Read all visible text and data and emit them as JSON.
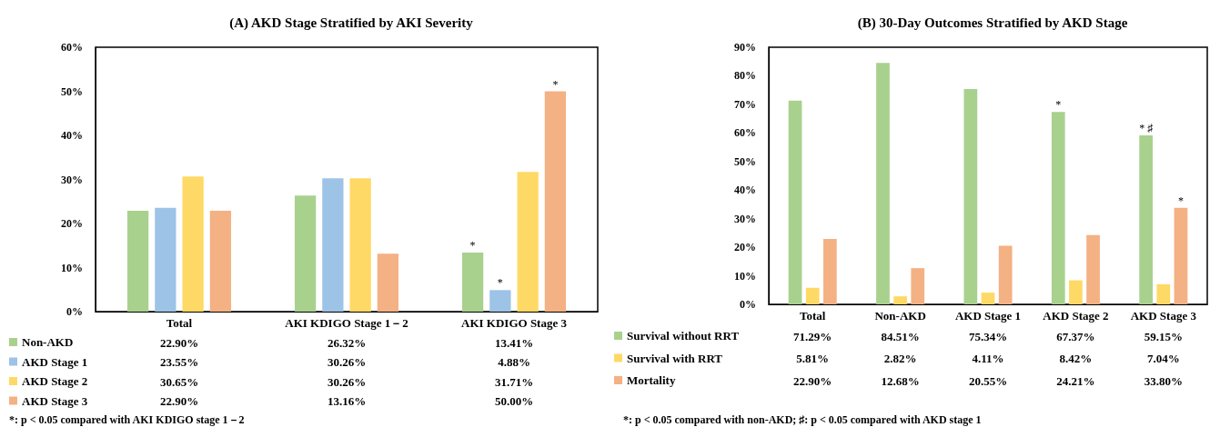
{
  "chart_data": [
    {
      "type": "bar",
      "title": "(A) AKD Stage Stratified by AKI Severity",
      "categories": [
        "Total",
        "AKI KDIGO Stage 1－2",
        "AKI KDIGO Stage 3"
      ],
      "series": [
        {
          "name": "Non-AKD",
          "color": "#a9d18e",
          "values": [
            22.9,
            26.32,
            13.41
          ],
          "value_labels": [
            "22.90%",
            "26.32%",
            "13.41%"
          ]
        },
        {
          "name": "AKD Stage 1",
          "color": "#9dc3e6",
          "values": [
            23.55,
            30.26,
            4.88
          ],
          "value_labels": [
            "23.55%",
            "30.26%",
            "4.88%"
          ]
        },
        {
          "name": "AKD Stage 2",
          "color": "#ffd966",
          "values": [
            30.65,
            30.26,
            31.71
          ],
          "value_labels": [
            "30.65%",
            "30.26%",
            "31.71%"
          ]
        },
        {
          "name": "AKD Stage 3",
          "color": "#f4b183",
          "values": [
            22.9,
            13.16,
            50.0
          ],
          "value_labels": [
            "22.90%",
            "13.16%",
            "50.00%"
          ]
        }
      ],
      "ylim": [
        0,
        60
      ],
      "yticks": [
        {
          "value": 0,
          "label": "0%"
        },
        {
          "value": 10,
          "label": "10%"
        },
        {
          "value": 20,
          "label": "20%"
        },
        {
          "value": 30,
          "label": "30%"
        },
        {
          "value": 40,
          "label": "40%"
        },
        {
          "value": 50,
          "label": "50%"
        },
        {
          "value": 60,
          "label": "60%"
        }
      ],
      "grid": false,
      "legend": "bottom left",
      "annotations": [
        "*",
        "*",
        "*",
        "*: p < 0.05 compared with AKI KDIGO stage 1－2"
      ]
    },
    {
      "type": "bar",
      "title": "(B) 30-Day Outcomes Stratified by AKD Stage",
      "categories": [
        "Total",
        "Non-AKD",
        "AKD Stage 1",
        "AKD Stage 2",
        "AKD Stage 3"
      ],
      "series": [
        {
          "name": "Survival without RRT",
          "color": "#a9d18e",
          "values": [
            71.29,
            84.51,
            75.34,
            67.37,
            59.15
          ],
          "value_labels": [
            "71.29%",
            "84.51%",
            "75.34%",
            "67.37%",
            "59.15%"
          ]
        },
        {
          "name": "Survival with RRT",
          "color": "#ffd966",
          "values": [
            5.81,
            2.82,
            4.11,
            8.42,
            7.04
          ],
          "value_labels": [
            "5.81%",
            "2.82%",
            "4.11%",
            "8.42%",
            "7.04%"
          ]
        },
        {
          "name": "Mortality",
          "color": "#f4b183",
          "values": [
            22.9,
            12.68,
            20.55,
            24.21,
            33.8
          ],
          "value_labels": [
            "22.90%",
            "12.68%",
            "20.55%",
            "24.21%",
            "33.80%"
          ]
        }
      ],
      "ylim": [
        0,
        90
      ],
      "yticks": [
        {
          "value": 0,
          "label": "0%"
        },
        {
          "value": 10,
          "label": "10%"
        },
        {
          "value": 20,
          "label": "20%"
        },
        {
          "value": 30,
          "label": "30%"
        },
        {
          "value": 40,
          "label": "40%"
        },
        {
          "value": 50,
          "label": "50%"
        },
        {
          "value": 60,
          "label": "60%"
        },
        {
          "value": 70,
          "label": "70%"
        },
        {
          "value": 80,
          "label": "80%"
        },
        {
          "value": 90,
          "label": "90%"
        }
      ],
      "grid": false,
      "legend": "bottom left",
      "annotations": [
        "*",
        "* ♯",
        "*",
        "*: p < 0.05 compared with non-AKD; ♯: p < 0.05 compared with AKD stage 1"
      ]
    }
  ]
}
